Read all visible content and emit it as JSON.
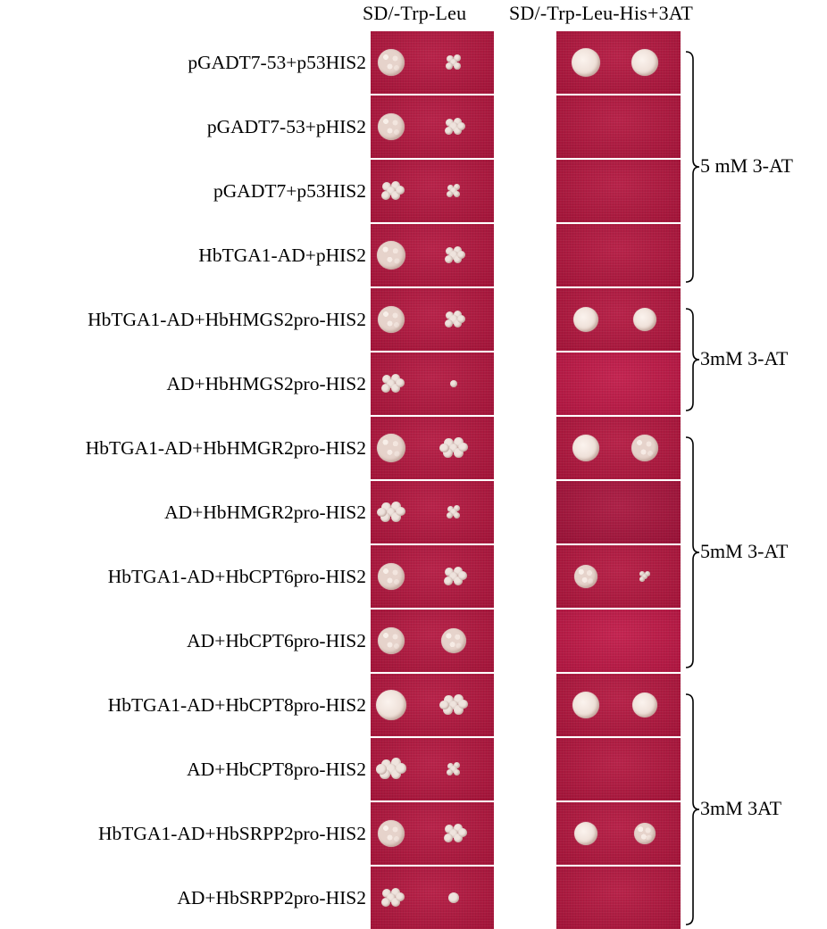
{
  "headers": {
    "left": "SD/-Trp-Leu",
    "right": "SD/-Trp-Leu-His+3AT"
  },
  "rows": [
    "pGADT7-53+p53HIS2",
    "pGADT7-53+pHIS2",
    "pGADT7+p53HIS2",
    "HbTGA1-AD+pHIS2",
    "HbTGA1-AD+HbHMGS2pro-HIS2",
    "AD+HbHMGS2pro-HIS2",
    "HbTGA1-AD+HbHMGR2pro-HIS2",
    "AD+HbHMGR2pro-HIS2",
    "HbTGA1-AD+HbCPT6pro-HIS2",
    "AD+HbCPT6pro-HIS2",
    "HbTGA1-AD+HbCPT8pro-HIS2",
    "AD+HbCPT8pro-HIS2",
    "HbTGA1-AD+HbSRPP2pro-HIS2",
    "AD+HbSRPP2pro-HIS2"
  ],
  "groups": [
    {
      "label": "5 mM 3-AT",
      "rows": [
        0,
        3
      ]
    },
    {
      "label": "3mM 3-AT",
      "rows": [
        4,
        5
      ]
    },
    {
      "label": "5mM 3-AT",
      "rows": [
        6,
        9
      ]
    },
    {
      "label": "3mM 3AT",
      "rows": [
        10,
        13
      ]
    }
  ],
  "colors": {
    "plate": "#b4163f",
    "colony": "#efe3dc",
    "background": "#ffffff"
  }
}
